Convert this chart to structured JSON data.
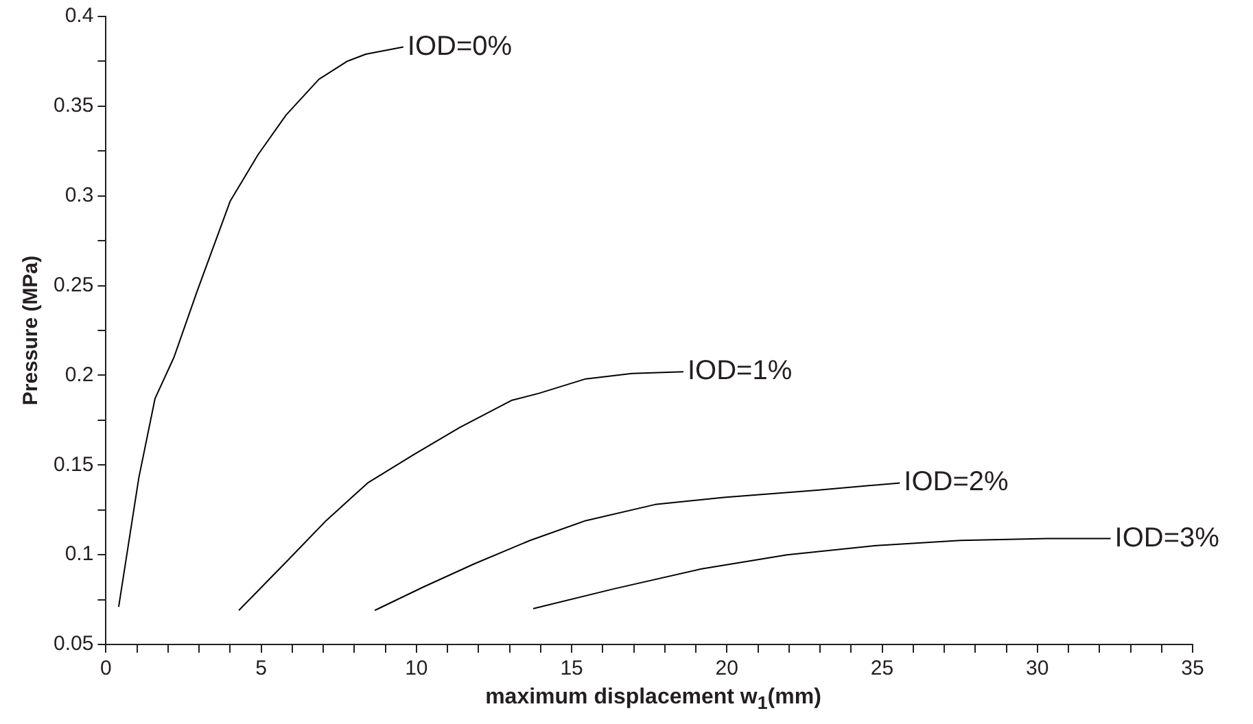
{
  "chart_data": {
    "type": "line",
    "xlabel": "maximum displacement w$_{1}$(mm)",
    "ylabel": "Pressure (MPa)",
    "xlim": [
      0,
      35
    ],
    "ylim": [
      0.05,
      0.4
    ],
    "xticks": [
      0,
      {
        "value": 1,
        "label": null
      },
      {
        "value": 2,
        "label": null
      },
      {
        "value": 3,
        "label": null
      },
      {
        "value": 4,
        "label": null
      },
      5,
      {
        "value": 6,
        "label": null
      },
      {
        "value": 7,
        "label": null
      },
      {
        "value": 8,
        "label": null
      },
      {
        "value": 9,
        "label": null
      },
      10,
      {
        "value": 11,
        "label": null
      },
      {
        "value": 12,
        "label": null
      },
      {
        "value": 13,
        "label": null
      },
      {
        "value": 14,
        "label": null
      },
      15,
      {
        "value": 16,
        "label": null
      },
      {
        "value": 17,
        "label": null
      },
      {
        "value": 18,
        "label": null
      },
      {
        "value": 19,
        "label": null
      },
      20,
      {
        "value": 21,
        "label": null
      },
      {
        "value": 22,
        "label": null
      },
      {
        "value": 23,
        "label": null
      },
      {
        "value": 24,
        "label": null
      },
      25,
      {
        "value": 26,
        "label": null
      },
      {
        "value": 27,
        "label": null
      },
      {
        "value": 28,
        "label": null
      },
      {
        "value": 29,
        "label": null
      },
      30,
      {
        "value": 31,
        "label": null
      },
      {
        "value": 32,
        "label": null
      },
      {
        "value": 33,
        "label": null
      },
      {
        "value": 34,
        "label": null
      },
      35
    ],
    "yticks": [
      0.05,
      {
        "value": 0.075,
        "label": null
      },
      0.1,
      {
        "value": 0.125,
        "label": null
      },
      0.15,
      {
        "value": 0.175,
        "label": null
      },
      0.2,
      {
        "value": 0.225,
        "label": null
      },
      0.25,
      {
        "value": 0.275,
        "label": null
      },
      0.3,
      {
        "value": 0.325,
        "label": null
      },
      0.35,
      {
        "value": 0.375,
        "label": null
      },
      0.4
    ],
    "grid": false,
    "legend": false,
    "marker": "none",
    "line_style": "solid",
    "series": [
      {
        "name": "IOD=0%",
        "color": "#000000",
        "x": [
          0.41,
          1.06,
          1.58,
          2.19,
          2.94,
          4.0,
          4.9,
          5.8,
          6.86,
          7.77,
          8.37,
          9.58
        ],
        "values": [
          0.071,
          0.143,
          0.187,
          0.21,
          0.247,
          0.297,
          0.323,
          0.345,
          0.365,
          0.375,
          0.379,
          0.383
        ]
      },
      {
        "name": "IOD=1%",
        "color": "#000000",
        "x": [
          4.28,
          5.75,
          7.09,
          8.43,
          9.93,
          11.4,
          13.06,
          13.95,
          15.45,
          16.94,
          18.6
        ],
        "values": [
          0.069,
          0.095,
          0.119,
          0.14,
          0.156,
          0.171,
          0.186,
          0.19,
          0.198,
          0.201,
          0.202
        ]
      },
      {
        "name": "IOD=2%",
        "color": "#000000",
        "x": [
          8.66,
          10.22,
          11.87,
          13.66,
          15.45,
          17.69,
          19.9,
          22.9,
          25.57
        ],
        "values": [
          0.069,
          0.082,
          0.095,
          0.108,
          0.119,
          0.128,
          0.132,
          0.136,
          0.14
        ]
      },
      {
        "name": "IOD=3%",
        "color": "#000000",
        "x": [
          13.76,
          16.36,
          19.15,
          21.94,
          24.73,
          27.52,
          30.31,
          32.36
        ],
        "values": [
          0.07,
          0.081,
          0.092,
          0.1,
          0.105,
          0.108,
          0.109,
          0.109
        ]
      }
    ]
  }
}
